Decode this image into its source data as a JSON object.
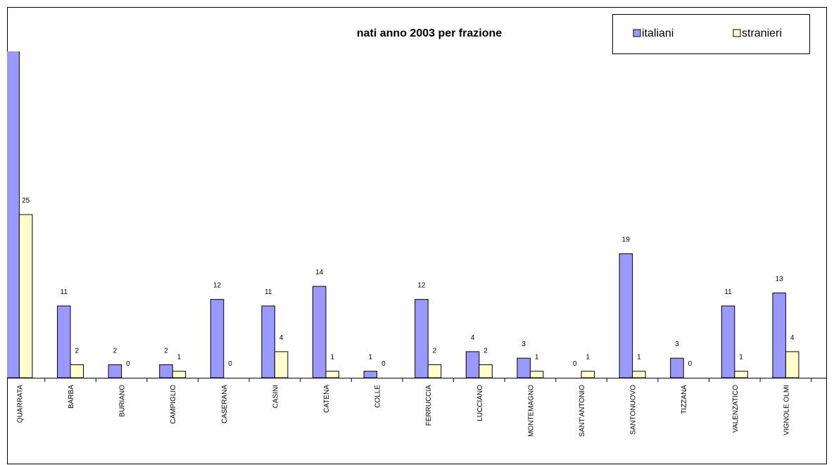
{
  "chart_data": {
    "type": "bar",
    "title": "nati anno 2003 per frazione",
    "categories": [
      "QUARRATA",
      "BARBA",
      "BURIANO",
      "CAMPIGLIO",
      "CASERANA",
      "CASINI",
      "CATENA",
      "COLLE",
      "FERRUCCIA",
      "LUCCIANO",
      "MONTEMAGNO",
      "SANT'ANTONIO",
      "SANTONUOVO",
      "TIZZANA",
      "VALENZATICO",
      "VIGNOLE OLMI"
    ],
    "series": [
      {
        "name": "italiani",
        "color": "#9999ff",
        "values": [
          52,
          11,
          2,
          2,
          12,
          11,
          14,
          1,
          12,
          4,
          3,
          0,
          19,
          3,
          11,
          13
        ]
      },
      {
        "name": "stranieri",
        "color": "#ffffcc",
        "values": [
          25,
          2,
          0,
          1,
          0,
          4,
          1,
          0,
          2,
          2,
          1,
          1,
          1,
          0,
          1,
          4
        ]
      }
    ],
    "ylim": [
      0,
      50
    ],
    "legend": "top-right"
  }
}
